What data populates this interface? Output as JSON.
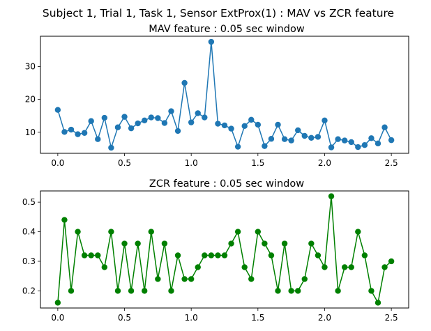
{
  "suptitle": "Subject 1, Trial 1, Task 1, Sensor ExtProx(1) : MAV vs ZCR feature",
  "chart_data": [
    {
      "type": "line",
      "title": "MAV feature : 0.05 sec window",
      "xlabel": "",
      "ylabel": "",
      "xlim": [
        -0.13,
        2.63
      ],
      "ylim": [
        3.6,
        39.2
      ],
      "xticks": [
        0.0,
        0.5,
        1.0,
        1.5,
        2.0,
        2.5
      ],
      "xtick_labels": [
        "0.0",
        "0.5",
        "1.0",
        "1.5",
        "2.0",
        "2.5"
      ],
      "yticks": [
        10,
        20,
        30
      ],
      "ytick_labels": [
        "10",
        "20",
        "30"
      ],
      "grid": false,
      "marker": "circle",
      "color": "#1f77b4",
      "x": [
        0.0,
        0.05,
        0.1,
        0.15,
        0.2,
        0.25,
        0.3,
        0.35,
        0.4,
        0.45,
        0.5,
        0.55,
        0.6,
        0.65,
        0.7,
        0.75,
        0.8,
        0.85,
        0.9,
        0.95,
        1.0,
        1.05,
        1.1,
        1.15,
        1.2,
        1.25,
        1.3,
        1.35,
        1.4,
        1.45,
        1.5,
        1.55,
        1.6,
        1.65,
        1.7,
        1.75,
        1.8,
        1.85,
        1.9,
        1.95,
        2.0,
        2.05,
        2.1,
        2.15,
        2.2,
        2.25,
        2.3,
        2.35,
        2.4,
        2.45,
        2.5
      ],
      "y": [
        16.8,
        10.1,
        10.8,
        9.4,
        9.8,
        13.4,
        7.9,
        14.4,
        5.3,
        11.5,
        14.7,
        11.2,
        12.7,
        13.6,
        14.5,
        14.3,
        12.8,
        16.4,
        10.4,
        25.0,
        13.0,
        15.8,
        14.5,
        37.5,
        12.6,
        12.1,
        11.1,
        5.6,
        11.9,
        13.8,
        12.3,
        5.8,
        8.0,
        12.3,
        7.9,
        7.5,
        10.6,
        8.9,
        8.3,
        8.6,
        13.6,
        5.4,
        7.9,
        7.5,
        7.0,
        5.5,
        6.1,
        8.2,
        6.6,
        11.5,
        7.6
      ]
    },
    {
      "type": "line",
      "title": "ZCR feature : 0.05 sec window",
      "xlabel": "",
      "ylabel": "",
      "xlim": [
        -0.13,
        2.63
      ],
      "ylim": [
        0.142,
        0.538
      ],
      "xticks": [
        0.0,
        0.5,
        1.0,
        1.5,
        2.0,
        2.5
      ],
      "xtick_labels": [
        "0.0",
        "0.5",
        "1.0",
        "1.5",
        "2.0",
        "2.5"
      ],
      "yticks": [
        0.2,
        0.3,
        0.4,
        0.5
      ],
      "ytick_labels": [
        "0.2",
        "0.3",
        "0.4",
        "0.5"
      ],
      "grid": false,
      "marker": "circle",
      "color": "#008000",
      "x": [
        0.0,
        0.05,
        0.1,
        0.15,
        0.2,
        0.25,
        0.3,
        0.35,
        0.4,
        0.45,
        0.5,
        0.55,
        0.6,
        0.65,
        0.7,
        0.75,
        0.8,
        0.85,
        0.9,
        0.95,
        1.0,
        1.05,
        1.1,
        1.15,
        1.2,
        1.25,
        1.3,
        1.35,
        1.4,
        1.45,
        1.5,
        1.55,
        1.6,
        1.65,
        1.7,
        1.75,
        1.8,
        1.85,
        1.9,
        1.95,
        2.0,
        2.05,
        2.1,
        2.15,
        2.2,
        2.25,
        2.3,
        2.35,
        2.4,
        2.45,
        2.5
      ],
      "y": [
        0.16,
        0.44,
        0.2,
        0.4,
        0.32,
        0.32,
        0.32,
        0.28,
        0.4,
        0.2,
        0.36,
        0.2,
        0.36,
        0.2,
        0.4,
        0.24,
        0.36,
        0.2,
        0.32,
        0.24,
        0.24,
        0.28,
        0.32,
        0.32,
        0.32,
        0.32,
        0.36,
        0.4,
        0.28,
        0.24,
        0.4,
        0.36,
        0.32,
        0.2,
        0.36,
        0.2,
        0.2,
        0.24,
        0.36,
        0.32,
        0.28,
        0.52,
        0.2,
        0.28,
        0.28,
        0.4,
        0.32,
        0.2,
        0.16,
        0.28,
        0.3
      ]
    }
  ]
}
